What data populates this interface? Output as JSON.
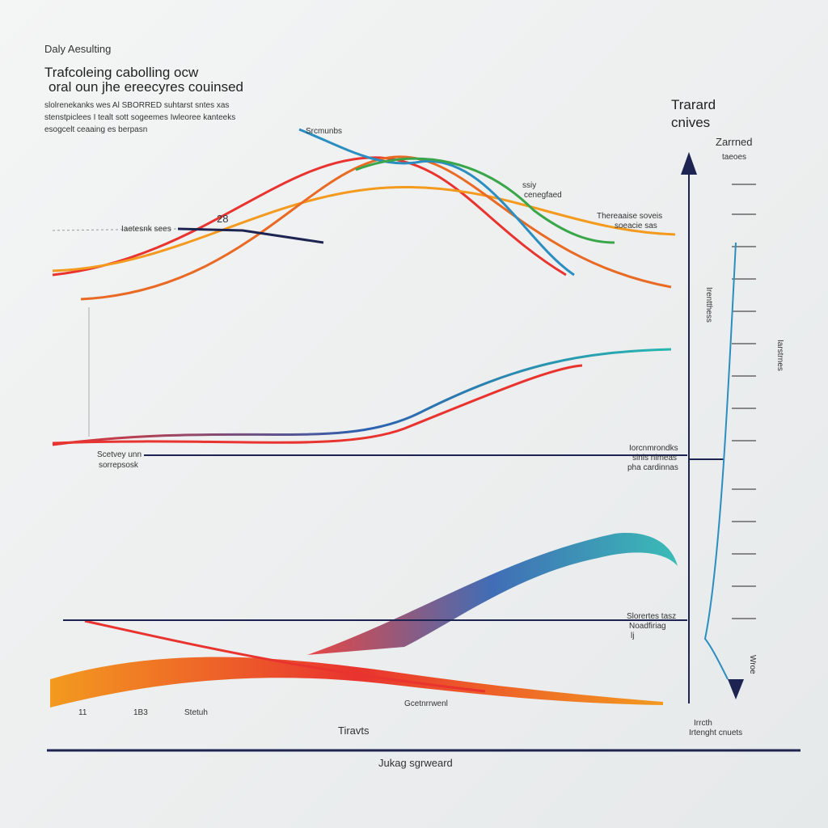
{
  "header": {
    "title": "Daly Aesulting",
    "subtitle": [
      "Trafcoleing cabolling ocw",
      "oral oun jhe ereecyres couinsed"
    ],
    "body": [
      "slolrenekanks wes Al SBORRED suhtarst sntes xas",
      "stenstpiclees I tealt sott sogeemes Iwleoree kanteeks",
      "esogcelt ceaaing es berpasn"
    ]
  },
  "side": {
    "title": [
      "Trarard",
      "cnives"
    ],
    "subtitle": "Zarrned",
    "note": "taeoes"
  },
  "labels": {
    "top_curve": "Srcmunbs",
    "left_marker": "Iaetesnk sees",
    "top_value": "28",
    "mid_note": [
      "ssiy",
      "cenegfaed"
    ],
    "right_note": [
      "Thereaaise soveis",
      "soeacie sas"
    ],
    "mid_left": [
      "Scetvey unn",
      "sorrepsosk"
    ],
    "mid_right": [
      "Iorcnmrondks",
      "sinis nimeas",
      "pha cardinnas"
    ],
    "low_right": [
      "Slorertes tasz",
      "Noadfiriag",
      "lj"
    ],
    "bottom_ticks": [
      "11",
      "1B3",
      "Stetuh"
    ],
    "bottom_note": "Gcetnrrwenl",
    "x_label": "Tiravts",
    "footer": "Jukag sgrweard",
    "corner": [
      "Irrcth",
      "Irtenght cnuets"
    ],
    "axis_vert": [
      "Irentthess",
      "Iarstrnes"
    ],
    "axis_far": "Wroe"
  }
}
